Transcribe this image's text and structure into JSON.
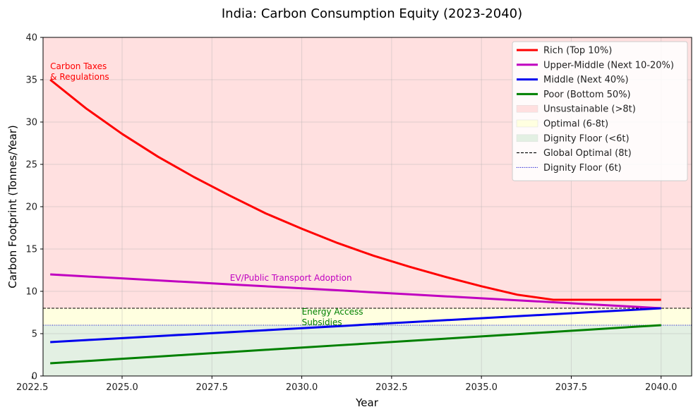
{
  "chart_data": {
    "type": "line",
    "title": "India: Carbon Consumption Equity (2023-2040)",
    "xlabel": "Year",
    "ylabel": "Carbon Footprint (Tonnes/Year)",
    "xlim": [
      2022.8,
      2040.85
    ],
    "ylim": [
      0,
      40
    ],
    "xticks": [
      2022.5,
      2025.0,
      2027.5,
      2030.0,
      2032.5,
      2035.0,
      2037.5,
      2040.0
    ],
    "xtick_labels": [
      "2022.5",
      "2025.0",
      "2027.5",
      "2030.0",
      "2032.5",
      "2035.0",
      "2037.5",
      "2040.0"
    ],
    "yticks": [
      0,
      5,
      10,
      15,
      20,
      25,
      30,
      35,
      40
    ],
    "ytick_labels": [
      "0",
      "5",
      "10",
      "15",
      "20",
      "25",
      "30",
      "35",
      "40"
    ],
    "grid": true,
    "legend_position": "top-right",
    "bands": [
      {
        "name": "Unsustainable (>8t)",
        "from": 8,
        "to": 40,
        "color": "#ffe0e0"
      },
      {
        "name": "Optimal (6-8t)",
        "from": 6,
        "to": 8,
        "color": "#ffffe0"
      },
      {
        "name": "Dignity Floor (<6t)",
        "from": 0,
        "to": 6,
        "color": "#e3f0e3"
      }
    ],
    "reference_lines": [
      {
        "name": "Global Optimal (8t)",
        "y": 8,
        "color": "#000000",
        "style": "dashed"
      },
      {
        "name": "Dignity Floor (6t)",
        "y": 6,
        "color": "#0000cc",
        "style": "dotted"
      }
    ],
    "x": [
      2023,
      2024,
      2025,
      2026,
      2027,
      2028,
      2029,
      2030,
      2031,
      2032,
      2033,
      2034,
      2035,
      2036,
      2037,
      2038,
      2039,
      2040
    ],
    "series": [
      {
        "name": "Rich (Top 10%)",
        "color": "#ff0000",
        "values": [
          35.0,
          31.6,
          28.6,
          25.9,
          23.5,
          21.3,
          19.2,
          17.4,
          15.7,
          14.2,
          12.9,
          11.7,
          10.6,
          9.6,
          9.0,
          9.0,
          9.0,
          9.0
        ]
      },
      {
        "name": "Upper-Middle (Next 10-20%)",
        "color": "#c000c0",
        "values": [
          12.0,
          11.76,
          11.53,
          11.29,
          11.06,
          10.82,
          10.59,
          10.35,
          10.12,
          9.88,
          9.65,
          9.41,
          9.18,
          8.94,
          8.71,
          8.47,
          8.24,
          8.0
        ]
      },
      {
        "name": "Middle (Next 40%)",
        "color": "#0000ee",
        "values": [
          4.0,
          4.24,
          4.47,
          4.71,
          4.94,
          5.18,
          5.41,
          5.65,
          5.88,
          6.12,
          6.35,
          6.59,
          6.82,
          7.06,
          7.29,
          7.53,
          7.76,
          8.0
        ]
      },
      {
        "name": "Poor (Bottom 50%)",
        "color": "#008000",
        "values": [
          1.5,
          1.76,
          2.03,
          2.29,
          2.56,
          2.82,
          3.09,
          3.35,
          3.62,
          3.88,
          4.15,
          4.41,
          4.68,
          4.94,
          5.21,
          5.47,
          5.74,
          6.0
        ]
      }
    ],
    "annotations": [
      {
        "lines": [
          "Carbon Taxes",
          "& Regulations"
        ],
        "x": 2023,
        "y": 35.0,
        "color": "#ff0000"
      },
      {
        "lines": [
          "EV/Public Transport Adoption"
        ],
        "x": 2028,
        "y": 10.0,
        "color": "#c000c0"
      },
      {
        "lines": [
          "Energy Access",
          "Subsidies"
        ],
        "x": 2030,
        "y": 6.0,
        "color": "#008000"
      }
    ]
  }
}
